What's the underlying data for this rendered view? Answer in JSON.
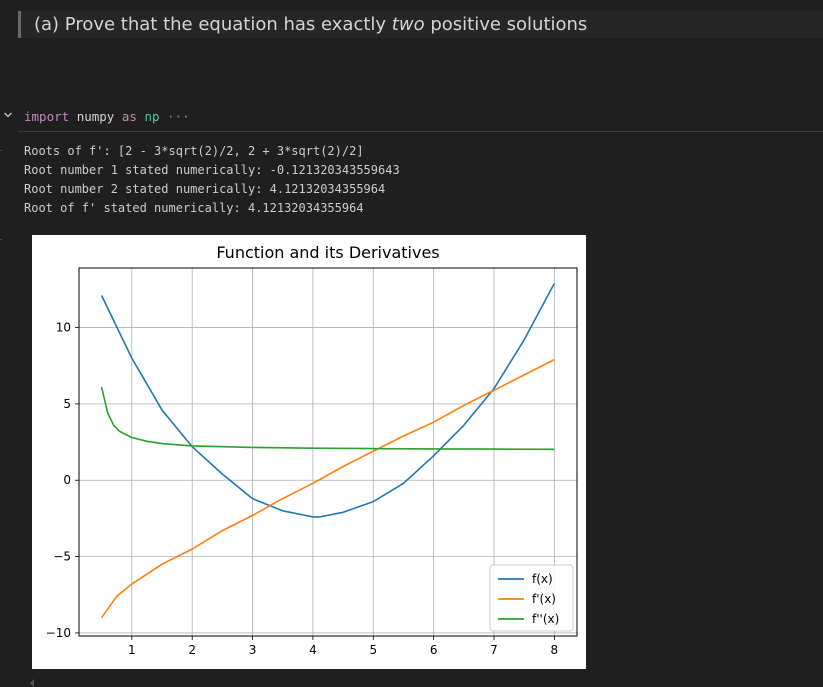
{
  "markdown_cell": {
    "prefix": "(a) Prove that the equation has exactly ",
    "emphasis": "two",
    "suffix": " positive solutions"
  },
  "code_cell": {
    "keyword_import": "import",
    "module": "numpy",
    "keyword_as": "as",
    "alias": "np",
    "collapsed_indicator": "···"
  },
  "output_lines": [
    "Roots of f': [2 - 3*sqrt(2)/2, 2 + 3*sqrt(2)/2]",
    "Root number 1 stated numerically: -0.121320343559643",
    "Root number 2 stated numerically: 4.12132034355964",
    "Root of f' stated numerically: 4.12132034355964"
  ],
  "icons": {
    "chevron": "chevron-down-icon",
    "scroll": "scroll-left-icon"
  },
  "chart_data": {
    "type": "line",
    "title": "Function and its Derivatives",
    "xlabel": "",
    "ylabel": "",
    "xlim": [
      0.125,
      8.375
    ],
    "ylim": [
      -10.2,
      13.9
    ],
    "x_ticks": [
      1,
      2,
      3,
      4,
      5,
      6,
      7,
      8
    ],
    "y_ticks": [
      -10,
      -5,
      0,
      5,
      10
    ],
    "y_tick_labels": [
      "−10",
      "−5",
      "0",
      "5",
      "10"
    ],
    "grid": true,
    "legend_position": "lower-right",
    "series": [
      {
        "name": "f(x)",
        "color": "#1f77b4",
        "x": [
          0.5,
          1,
          1.5,
          2,
          2.5,
          3,
          3.5,
          4,
          4.12,
          4.5,
          5,
          5.5,
          6,
          6.5,
          7,
          7.5,
          8
        ],
        "y": [
          12.1,
          8.0,
          4.6,
          2.2,
          0.4,
          -1.2,
          -2.0,
          -2.4,
          -2.4,
          -2.1,
          -1.4,
          -0.2,
          1.6,
          3.6,
          6.0,
          9.2,
          12.9
        ]
      },
      {
        "name": "f'(x)",
        "color": "#ff7f0e",
        "x": [
          0.5,
          0.75,
          1,
          1.5,
          2,
          2.5,
          3,
          3.5,
          4,
          4.5,
          5,
          5.5,
          6,
          6.5,
          7,
          7.5,
          8
        ],
        "y": [
          -9.0,
          -7.6,
          -6.8,
          -5.5,
          -4.5,
          -3.3,
          -2.3,
          -1.2,
          -0.2,
          0.9,
          1.9,
          2.9,
          3.8,
          4.9,
          5.9,
          6.9,
          7.9
        ]
      },
      {
        "name": "f''(x)",
        "color": "#2ca02c",
        "x": [
          0.5,
          0.6,
          0.7,
          0.8,
          1,
          1.25,
          1.5,
          2,
          3,
          4,
          5,
          6,
          7,
          8
        ],
        "y": [
          6.1,
          4.4,
          3.6,
          3.2,
          2.8,
          2.55,
          2.4,
          2.25,
          2.15,
          2.1,
          2.07,
          2.05,
          2.04,
          2.03
        ]
      }
    ]
  }
}
